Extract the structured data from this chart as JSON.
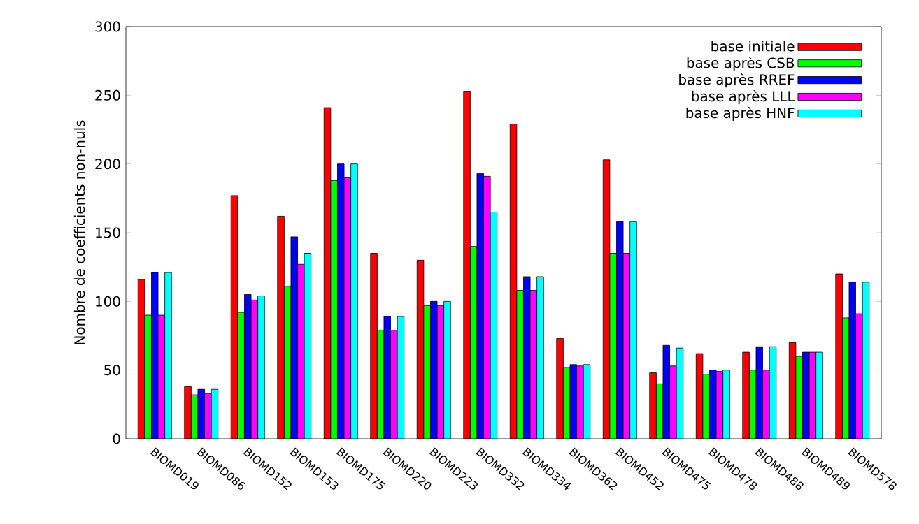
{
  "chart_data": {
    "type": "bar",
    "ylabel": "Nombre de coefficients non-nuls",
    "categories": [
      "BIOMD019",
      "BIOMD086",
      "BIOMD152",
      "BIOMD153",
      "BIOMD175",
      "BIOMD220",
      "BIOMD223",
      "BIOMD332",
      "BIOMD334",
      "BIOMD362",
      "BIOMD452",
      "BIOMD475",
      "BIOMD478",
      "BIOMD488",
      "BIOMD489",
      "BIOMD578"
    ],
    "series": [
      {
        "name": "base initiale",
        "color": "#ff0000",
        "values": [
          116,
          38,
          177,
          162,
          241,
          135,
          130,
          253,
          229,
          73,
          203,
          48,
          62,
          63,
          70,
          120
        ]
      },
      {
        "name": "base après CSB",
        "color": "#00ff00",
        "values": [
          90,
          32,
          92,
          111,
          188,
          79,
          97,
          140,
          108,
          52,
          135,
          40,
          47,
          50,
          60,
          88
        ]
      },
      {
        "name": "base après RREF",
        "color": "#0000ff",
        "values": [
          121,
          36,
          105,
          147,
          200,
          89,
          100,
          193,
          118,
          54,
          158,
          68,
          50,
          67,
          63,
          114
        ]
      },
      {
        "name": "base après LLL",
        "color": "#ff00ff",
        "values": [
          90,
          33,
          101,
          127,
          190,
          79,
          97,
          191,
          108,
          53,
          135,
          53,
          49,
          50,
          63,
          91
        ]
      },
      {
        "name": "base après HNF",
        "color": "#00ffff",
        "values": [
          121,
          36,
          104,
          135,
          200,
          89,
          100,
          165,
          118,
          54,
          158,
          66,
          50,
          67,
          63,
          114
        ]
      }
    ],
    "ylim": [
      0,
      300
    ],
    "yticks": [
      0,
      50,
      100,
      150,
      200,
      250,
      300
    ],
    "legend": "top right"
  }
}
